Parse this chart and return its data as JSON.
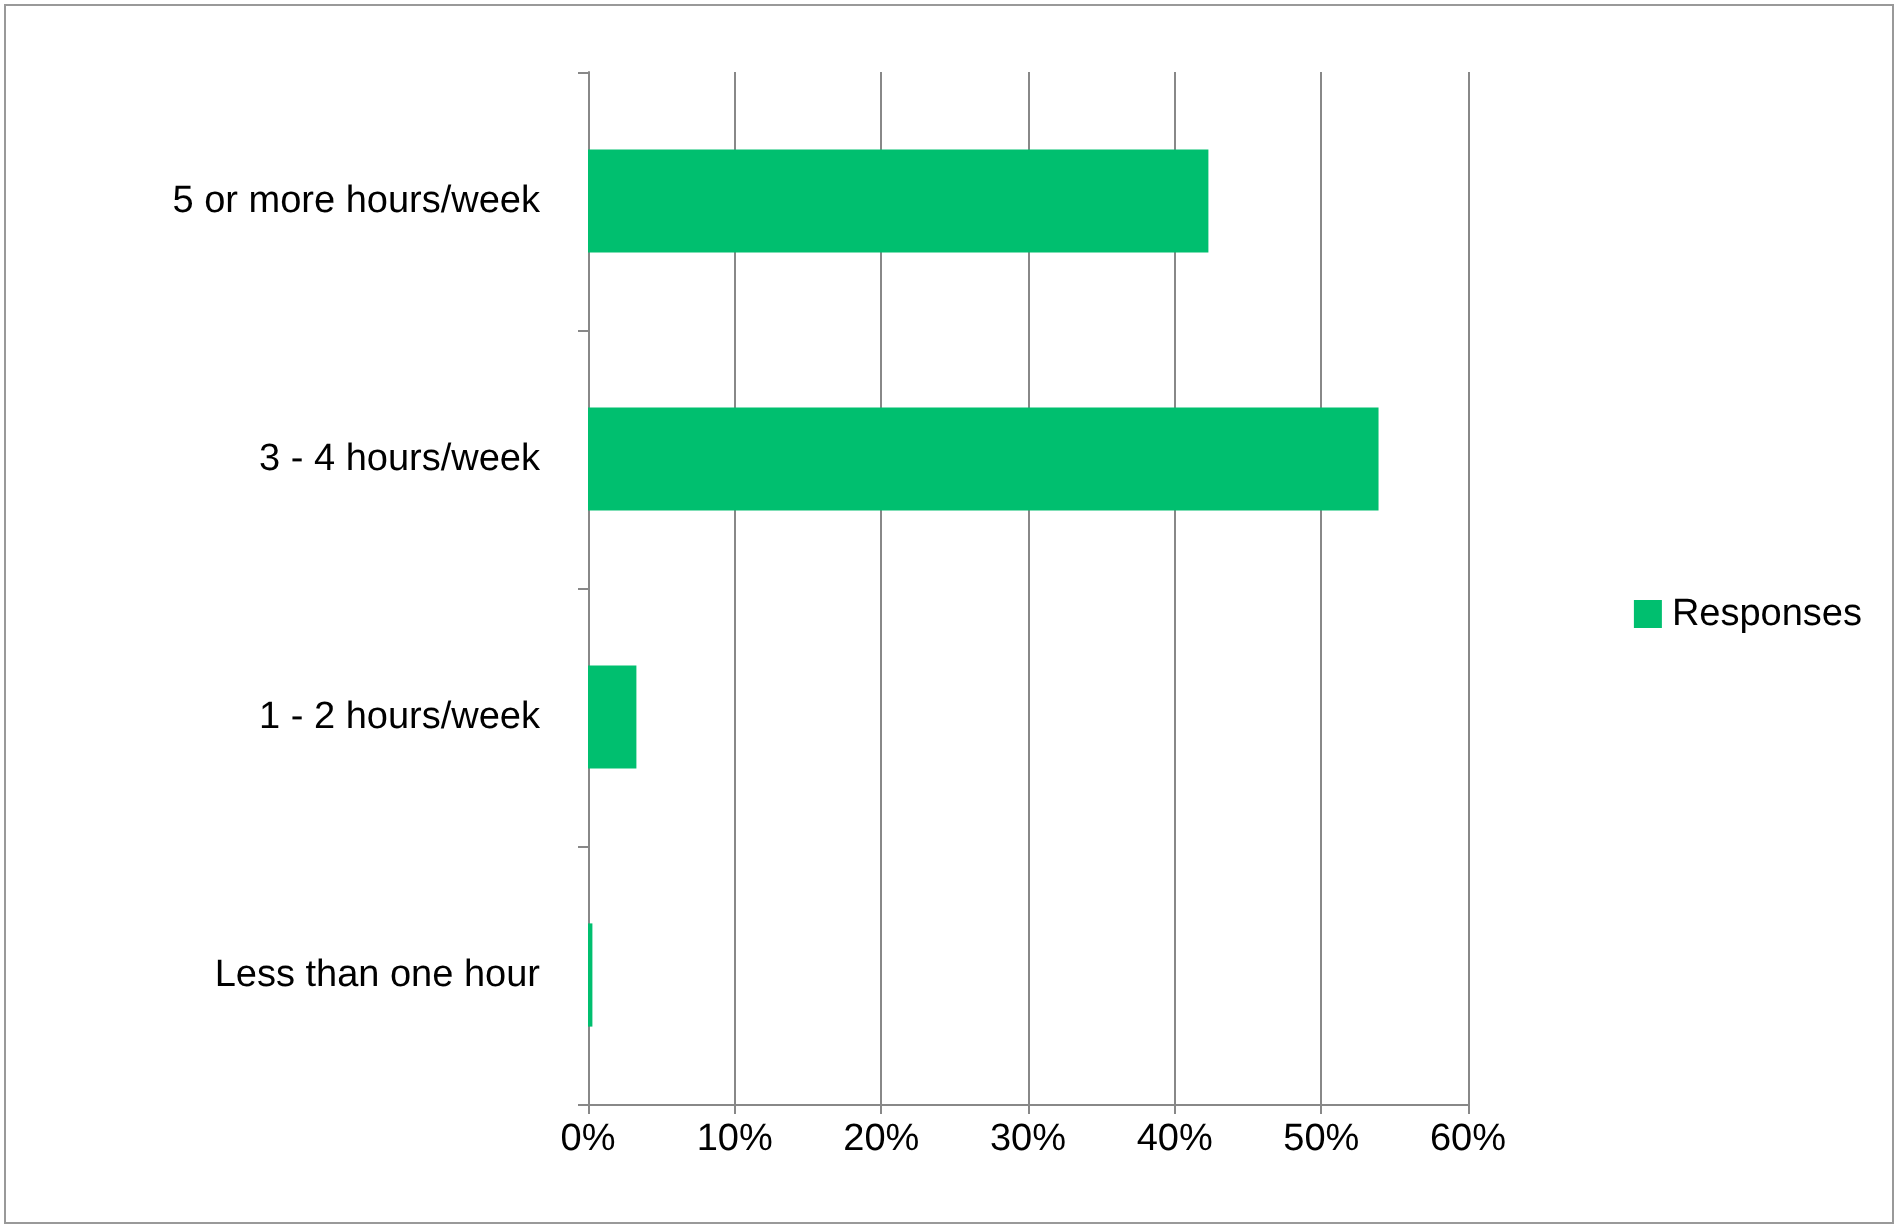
{
  "chart_data": {
    "type": "bar",
    "orientation": "horizontal",
    "categories": [
      "5 or more hours/week",
      "3 - 4 hours/week",
      "1 - 2 hours/week",
      "Less than one hour"
    ],
    "series": [
      {
        "name": "Responses",
        "color": "#00bf6f",
        "values": [
          42.3,
          53.9,
          3.3,
          0.3
        ]
      }
    ],
    "xlim": [
      0,
      60
    ],
    "xticks": [
      {
        "value": 0,
        "label": "0%"
      },
      {
        "value": 10,
        "label": "10%"
      },
      {
        "value": 20,
        "label": "20%"
      },
      {
        "value": 30,
        "label": "30%"
      },
      {
        "value": 40,
        "label": "40%"
      },
      {
        "value": 50,
        "label": "50%"
      },
      {
        "value": 60,
        "label": "60%"
      }
    ],
    "grid": "x",
    "legend": "right"
  }
}
